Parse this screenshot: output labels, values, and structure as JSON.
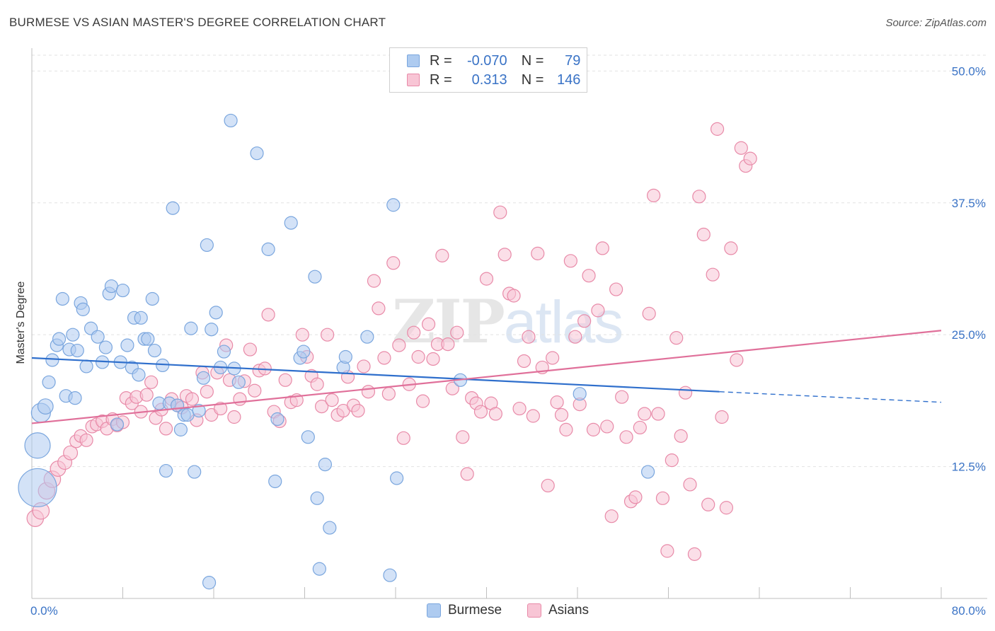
{
  "header": {
    "title": "BURMESE VS ASIAN MASTER'S DEGREE CORRELATION CHART",
    "source": "Source: ZipAtlas.com"
  },
  "watermark": {
    "zip": "ZIP",
    "atlas": "atlas"
  },
  "legend": {
    "rows": [
      {
        "r_label": "R =",
        "r_value": "-0.070",
        "n_label": "N =",
        "n_value": "79",
        "color": "#aecbf0",
        "border": "#7aa6de"
      },
      {
        "r_label": "R =",
        "r_value": "0.313",
        "n_label": "N =",
        "n_value": "146",
        "color": "#f8c5d5",
        "border": "#e88aa8"
      }
    ]
  },
  "bottom_legend": [
    {
      "label": "Burmese",
      "color": "#aecbf0",
      "border": "#7aa6de"
    },
    {
      "label": "Asians",
      "color": "#f8c5d5",
      "border": "#e88aa8"
    }
  ],
  "chart_data": {
    "type": "scatter",
    "title": "BURMESE VS ASIAN MASTER'S DEGREE CORRELATION CHART",
    "xlabel": "",
    "ylabel": "Master's Degree",
    "xlim": [
      0,
      80
    ],
    "ylim": [
      0,
      51.5
    ],
    "x_tick_labels": [
      "0.0%",
      "80.0%"
    ],
    "y_ticks": [
      12.5,
      25.0,
      37.5,
      50.0
    ],
    "y_tick_labels": [
      "12.5%",
      "25.0%",
      "37.5%",
      "50.0%"
    ],
    "grid": "horizontal dashed",
    "colors": {
      "burmese": "#7aa6de",
      "burmese_fill": "#aecbf0",
      "burmese_line": "#2f6fcc",
      "asians": "#e88aa8",
      "asians_fill": "#f8c5d5",
      "asians_line": "#e0709a",
      "axis_label": "#3a73c6"
    },
    "series": [
      {
        "name": "Burmese",
        "trend": {
          "x0": 0,
          "y0": 22.8,
          "x1": 60.5,
          "y1": 19.6,
          "dash_to": 80,
          "dash_y": 18.6
        },
        "points": [
          [
            0.5,
            10.5,
            3
          ],
          [
            0.5,
            14.5,
            2
          ],
          [
            0.8,
            17.6,
            1.5
          ],
          [
            1.2,
            18.2,
            1.2
          ],
          [
            1.5,
            20.5,
            1
          ],
          [
            1.8,
            22.6,
            1
          ],
          [
            2.2,
            24.0,
            1
          ],
          [
            2.4,
            24.6,
            1
          ],
          [
            2.7,
            28.4,
            1
          ],
          [
            3.0,
            19.2,
            1
          ],
          [
            3.3,
            23.6,
            1
          ],
          [
            3.6,
            25.0,
            1
          ],
          [
            3.8,
            19.0,
            1
          ],
          [
            4.0,
            23.5,
            1
          ],
          [
            4.3,
            28.0,
            1
          ],
          [
            4.5,
            27.4,
            1
          ],
          [
            4.8,
            22.0,
            1
          ],
          [
            5.2,
            25.6,
            1
          ],
          [
            5.8,
            24.8,
            1
          ],
          [
            6.2,
            22.4,
            1
          ],
          [
            6.5,
            23.8,
            1
          ],
          [
            6.8,
            28.9,
            1
          ],
          [
            7.0,
            29.6,
            1
          ],
          [
            7.5,
            16.5,
            1
          ],
          [
            7.8,
            22.4,
            1
          ],
          [
            8.0,
            29.2,
            1
          ],
          [
            8.4,
            24.0,
            1
          ],
          [
            8.8,
            21.9,
            1
          ],
          [
            9.0,
            26.6,
            1
          ],
          [
            9.4,
            21.2,
            1
          ],
          [
            9.6,
            26.6,
            1
          ],
          [
            9.9,
            24.6,
            1
          ],
          [
            10.2,
            24.6,
            1
          ],
          [
            10.6,
            28.4,
            1
          ],
          [
            10.8,
            23.5,
            1
          ],
          [
            11.2,
            18.5,
            1
          ],
          [
            11.5,
            22.1,
            1
          ],
          [
            11.8,
            12.1,
            1
          ],
          [
            12.1,
            18.5,
            1
          ],
          [
            12.4,
            37.0,
            1
          ],
          [
            12.8,
            18.3,
            1
          ],
          [
            13.1,
            16.0,
            1
          ],
          [
            13.4,
            17.4,
            1
          ],
          [
            13.7,
            17.4,
            1
          ],
          [
            14.0,
            25.6,
            1
          ],
          [
            14.3,
            12.0,
            1
          ],
          [
            14.7,
            17.8,
            1
          ],
          [
            15.1,
            20.9,
            1
          ],
          [
            15.4,
            33.5,
            1
          ],
          [
            15.6,
            1.5,
            1
          ],
          [
            15.8,
            25.5,
            1
          ],
          [
            16.2,
            27.1,
            1
          ],
          [
            16.6,
            21.9,
            1
          ],
          [
            16.9,
            23.4,
            1
          ],
          [
            17.5,
            45.3,
            1
          ],
          [
            17.8,
            21.8,
            1
          ],
          [
            18.2,
            20.5,
            1
          ],
          [
            19.8,
            42.2,
            1
          ],
          [
            20.8,
            33.1,
            1
          ],
          [
            21.4,
            11.1,
            1
          ],
          [
            21.6,
            17.0,
            1
          ],
          [
            22.8,
            35.6,
            1
          ],
          [
            23.6,
            22.8,
            1
          ],
          [
            23.9,
            23.4,
            1
          ],
          [
            24.3,
            15.3,
            1
          ],
          [
            24.9,
            30.5,
            1
          ],
          [
            25.1,
            9.5,
            1
          ],
          [
            25.3,
            2.8,
            1
          ],
          [
            25.8,
            12.7,
            1
          ],
          [
            26.2,
            6.7,
            1
          ],
          [
            27.4,
            21.9,
            1
          ],
          [
            27.6,
            22.9,
            1
          ],
          [
            29.5,
            24.8,
            1
          ],
          [
            31.5,
            2.2,
            1
          ],
          [
            31.8,
            37.3,
            1
          ],
          [
            32.1,
            11.4,
            1
          ],
          [
            37.7,
            20.7,
            1
          ],
          [
            48.2,
            19.4,
            1
          ],
          [
            54.2,
            12.0,
            1
          ]
        ]
      },
      {
        "name": "Asians",
        "trend": {
          "x0": 0,
          "y0": 16.6,
          "x1": 80,
          "y1": 25.4
        },
        "points": [
          [
            0.3,
            7.6,
            1.3
          ],
          [
            0.8,
            8.3,
            1.3
          ],
          [
            1.3,
            10.2,
            1.3
          ],
          [
            1.8,
            11.3,
            1.3
          ],
          [
            2.3,
            12.3,
            1.2
          ],
          [
            2.9,
            12.9,
            1.1
          ],
          [
            3.4,
            13.8,
            1.1
          ],
          [
            3.9,
            14.9,
            1
          ],
          [
            4.3,
            15.4,
            1
          ],
          [
            4.8,
            15.0,
            1
          ],
          [
            5.3,
            16.3,
            1
          ],
          [
            5.7,
            16.5,
            1
          ],
          [
            6.2,
            16.8,
            1
          ],
          [
            6.6,
            16.1,
            1
          ],
          [
            7.1,
            17.0,
            1
          ],
          [
            7.5,
            16.4,
            1
          ],
          [
            8.0,
            16.7,
            1
          ],
          [
            8.3,
            19.0,
            1
          ],
          [
            8.8,
            18.5,
            1
          ],
          [
            9.2,
            19.1,
            1
          ],
          [
            9.6,
            17.7,
            1
          ],
          [
            10.1,
            19.3,
            1
          ],
          [
            10.5,
            20.5,
            1
          ],
          [
            10.9,
            17.1,
            1
          ],
          [
            11.4,
            17.9,
            1
          ],
          [
            11.8,
            16.1,
            1
          ],
          [
            12.3,
            18.9,
            1
          ],
          [
            12.8,
            18.3,
            1
          ],
          [
            13.2,
            18.1,
            1
          ],
          [
            13.6,
            19.2,
            1
          ],
          [
            14.1,
            18.9,
            1
          ],
          [
            14.5,
            16.9,
            1
          ],
          [
            15.0,
            21.4,
            1
          ],
          [
            15.4,
            19.6,
            1
          ],
          [
            15.8,
            17.4,
            1
          ],
          [
            16.3,
            21.4,
            1
          ],
          [
            16.6,
            18.0,
            1
          ],
          [
            17.1,
            24.0,
            1
          ],
          [
            17.4,
            20.7,
            1
          ],
          [
            17.8,
            17.2,
            1
          ],
          [
            18.3,
            18.9,
            1
          ],
          [
            18.7,
            20.6,
            1
          ],
          [
            19.2,
            23.6,
            1
          ],
          [
            19.6,
            19.7,
            1
          ],
          [
            20.0,
            21.6,
            1
          ],
          [
            20.5,
            21.8,
            1
          ],
          [
            20.8,
            26.9,
            1
          ],
          [
            21.3,
            17.7,
            1
          ],
          [
            21.8,
            16.8,
            1
          ],
          [
            22.3,
            20.7,
            1
          ],
          [
            22.8,
            18.6,
            1
          ],
          [
            23.3,
            18.8,
            1
          ],
          [
            23.8,
            25.0,
            1
          ],
          [
            24.2,
            22.9,
            1
          ],
          [
            24.6,
            21.1,
            1
          ],
          [
            25.1,
            20.3,
            1
          ],
          [
            25.5,
            18.2,
            1
          ],
          [
            26.0,
            25.0,
            1
          ],
          [
            26.4,
            18.8,
            1
          ],
          [
            26.9,
            17.4,
            1
          ],
          [
            27.4,
            17.8,
            1
          ],
          [
            27.8,
            21.0,
            1
          ],
          [
            28.3,
            18.3,
            1
          ],
          [
            28.7,
            17.8,
            1
          ],
          [
            29.2,
            22.0,
            1
          ],
          [
            29.6,
            19.6,
            1
          ],
          [
            30.1,
            30.1,
            1
          ],
          [
            30.5,
            27.5,
            1
          ],
          [
            31.0,
            22.8,
            1
          ],
          [
            31.4,
            19.4,
            1
          ],
          [
            31.8,
            31.8,
            1
          ],
          [
            32.3,
            24.0,
            1
          ],
          [
            32.7,
            15.2,
            1
          ],
          [
            33.2,
            20.3,
            1
          ],
          [
            33.6,
            25.2,
            1
          ],
          [
            34.0,
            22.9,
            1
          ],
          [
            34.4,
            18.7,
            1
          ],
          [
            34.9,
            26.0,
            1
          ],
          [
            35.3,
            22.7,
            1
          ],
          [
            35.7,
            24.1,
            1
          ],
          [
            36.1,
            32.5,
            1
          ],
          [
            36.6,
            24.1,
            1
          ],
          [
            37.0,
            19.9,
            1
          ],
          [
            37.4,
            25.2,
            1
          ],
          [
            37.9,
            15.3,
            1
          ],
          [
            38.3,
            11.8,
            1
          ],
          [
            38.7,
            19.0,
            1
          ],
          [
            39.1,
            18.5,
            1
          ],
          [
            39.5,
            17.7,
            1
          ],
          [
            40.0,
            30.3,
            1
          ],
          [
            40.4,
            18.5,
            1
          ],
          [
            40.8,
            17.5,
            1
          ],
          [
            41.2,
            36.6,
            1
          ],
          [
            41.6,
            32.6,
            1
          ],
          [
            42.0,
            28.9,
            1
          ],
          [
            42.4,
            28.7,
            1
          ],
          [
            42.9,
            18.0,
            1
          ],
          [
            43.3,
            22.5,
            1
          ],
          [
            43.7,
            24.8,
            1
          ],
          [
            44.1,
            17.3,
            1
          ],
          [
            44.5,
            32.7,
            1
          ],
          [
            44.9,
            21.9,
            1
          ],
          [
            45.4,
            10.7,
            1
          ],
          [
            45.8,
            22.8,
            1
          ],
          [
            46.2,
            18.6,
            1
          ],
          [
            46.6,
            17.4,
            1
          ],
          [
            47.0,
            16.0,
            1
          ],
          [
            47.4,
            32.0,
            1
          ],
          [
            47.8,
            24.8,
            1
          ],
          [
            48.2,
            18.4,
            1
          ],
          [
            48.6,
            26.3,
            1
          ],
          [
            49.0,
            30.6,
            1
          ],
          [
            49.4,
            16.0,
            1
          ],
          [
            49.8,
            27.3,
            1
          ],
          [
            50.2,
            33.2,
            1
          ],
          [
            50.6,
            16.3,
            1
          ],
          [
            51.0,
            7.8,
            1
          ],
          [
            51.4,
            29.3,
            1
          ],
          [
            51.9,
            19.1,
            1
          ],
          [
            52.3,
            15.3,
            1
          ],
          [
            52.7,
            9.2,
            1
          ],
          [
            53.1,
            9.6,
            1
          ],
          [
            53.5,
            16.2,
            1
          ],
          [
            53.9,
            17.5,
            1
          ],
          [
            54.3,
            27.0,
            1
          ],
          [
            54.7,
            38.2,
            1
          ],
          [
            55.1,
            17.5,
            1
          ],
          [
            55.5,
            9.5,
            1
          ],
          [
            55.9,
            4.5,
            1
          ],
          [
            56.3,
            13.1,
            1
          ],
          [
            56.7,
            24.7,
            1
          ],
          [
            57.1,
            15.4,
            1
          ],
          [
            57.5,
            19.5,
            1
          ],
          [
            57.9,
            10.8,
            1
          ],
          [
            58.3,
            4.2,
            1
          ],
          [
            58.7,
            38.1,
            1
          ],
          [
            59.1,
            34.5,
            1
          ],
          [
            59.5,
            8.9,
            1
          ],
          [
            59.9,
            30.7,
            1
          ],
          [
            60.3,
            44.5,
            1
          ],
          [
            60.7,
            17.2,
            1
          ],
          [
            61.1,
            8.6,
            1
          ],
          [
            61.5,
            33.2,
            1
          ],
          [
            62.0,
            22.6,
            1
          ],
          [
            62.4,
            42.7,
            1
          ],
          [
            62.8,
            41.0,
            1
          ],
          [
            63.2,
            41.7,
            1
          ]
        ]
      }
    ]
  }
}
